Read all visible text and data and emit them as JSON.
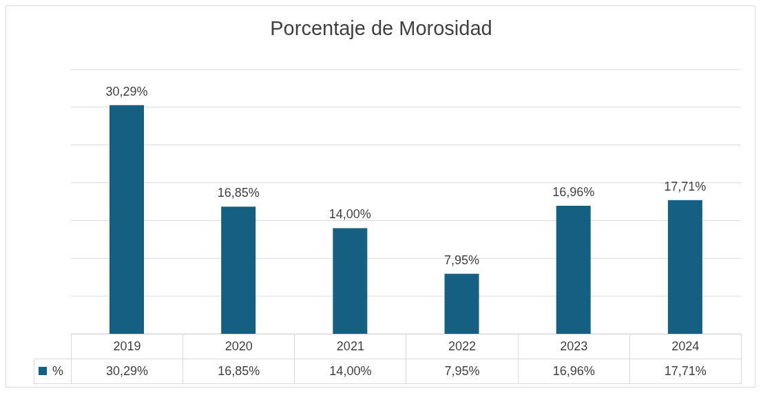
{
  "chart_data": {
    "type": "bar",
    "title": "Porcentaje de Morosidad",
    "categories": [
      "2019",
      "2020",
      "2021",
      "2022",
      "2023",
      "2024"
    ],
    "series": [
      {
        "name": "%",
        "color": "#156082",
        "values": [
          30.29,
          16.85,
          14.0,
          7.95,
          16.96,
          17.71
        ],
        "value_labels": [
          "30,29%",
          "16,85%",
          "14,00%",
          "7,95%",
          "16,96%",
          "17,71%"
        ]
      }
    ],
    "ylim": [
      0,
      35
    ],
    "yticks": [
      {
        "value": 0,
        "label": null
      },
      {
        "value": 5,
        "label": null
      },
      {
        "value": 10,
        "label": null
      },
      {
        "value": 15,
        "label": null
      },
      {
        "value": 20,
        "label": null
      },
      {
        "value": 25,
        "label": null
      },
      {
        "value": 30,
        "label": null
      },
      {
        "value": 35,
        "label": null
      }
    ],
    "grid": "y",
    "tick_labels": "x",
    "legend": "bottom"
  }
}
